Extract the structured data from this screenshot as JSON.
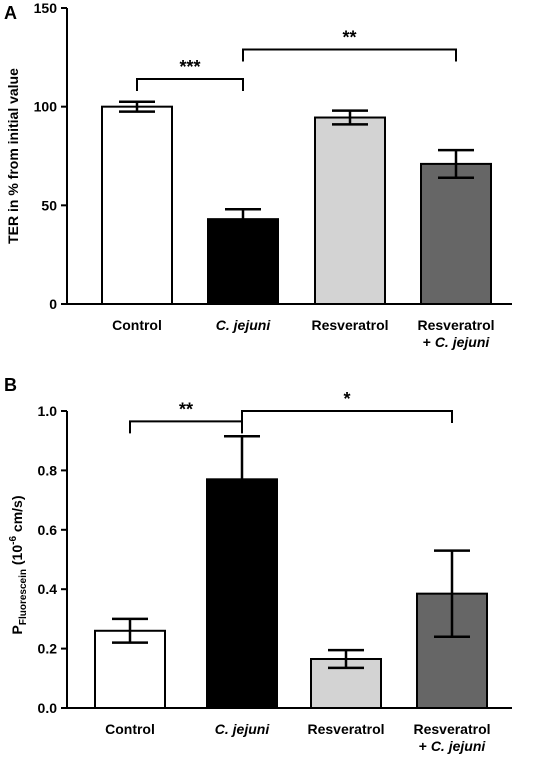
{
  "chart_data": [
    {
      "panel_label": "A",
      "type": "bar",
      "categories": [
        {
          "main": "Control",
          "italic": ""
        },
        {
          "main": "",
          "italic": "C. jejuni"
        },
        {
          "main": "Resveratrol",
          "italic": ""
        },
        {
          "main": "Resveratrol",
          "line2_prefix": "+ ",
          "italic": "C. jejuni"
        }
      ],
      "values": [
        100,
        43,
        94.5,
        71
      ],
      "errors": [
        2.5,
        5,
        3.5,
        7
      ],
      "bar_colors": [
        "#ffffff",
        "#000000",
        "#d3d3d3",
        "#666666"
      ],
      "ylabel": "TER in % from initial value",
      "ylim": [
        0,
        150
      ],
      "yticks": [
        0,
        50,
        100,
        150
      ],
      "significance": [
        {
          "from": 0,
          "to": 1,
          "label": "***",
          "level": 114
        },
        {
          "from": 1,
          "to": 3,
          "label": "**",
          "level": 129
        }
      ]
    },
    {
      "panel_label": "B",
      "type": "bar",
      "categories": [
        {
          "main": "Control",
          "italic": ""
        },
        {
          "main": "",
          "italic": "C. jejuni"
        },
        {
          "main": "Resveratrol",
          "italic": ""
        },
        {
          "main": "Resveratrol",
          "line2_prefix": "+ ",
          "italic": "C. jejuni"
        }
      ],
      "values": [
        0.26,
        0.77,
        0.165,
        0.385
      ],
      "errors": [
        0.04,
        0.145,
        0.03,
        0.145
      ],
      "bar_colors": [
        "#ffffff",
        "#000000",
        "#d3d3d3",
        "#666666"
      ],
      "ylabel": {
        "p": "P",
        "sub": "Fluorescein",
        "mid": " (10",
        "sup": "-6",
        "end": " cm/s)"
      },
      "ylim": [
        0,
        1.0
      ],
      "yticks": [
        0.0,
        0.2,
        0.4,
        0.6,
        0.8,
        1.0
      ],
      "ytick_labels": [
        "0.0",
        "0.2",
        "0.4",
        "0.6",
        "0.8",
        "1.0"
      ],
      "significance": [
        {
          "from": 0,
          "to": 1,
          "label": "**",
          "level": 0.965
        },
        {
          "from": 1,
          "to": 3,
          "label": "*",
          "level": 1.0
        }
      ]
    }
  ]
}
